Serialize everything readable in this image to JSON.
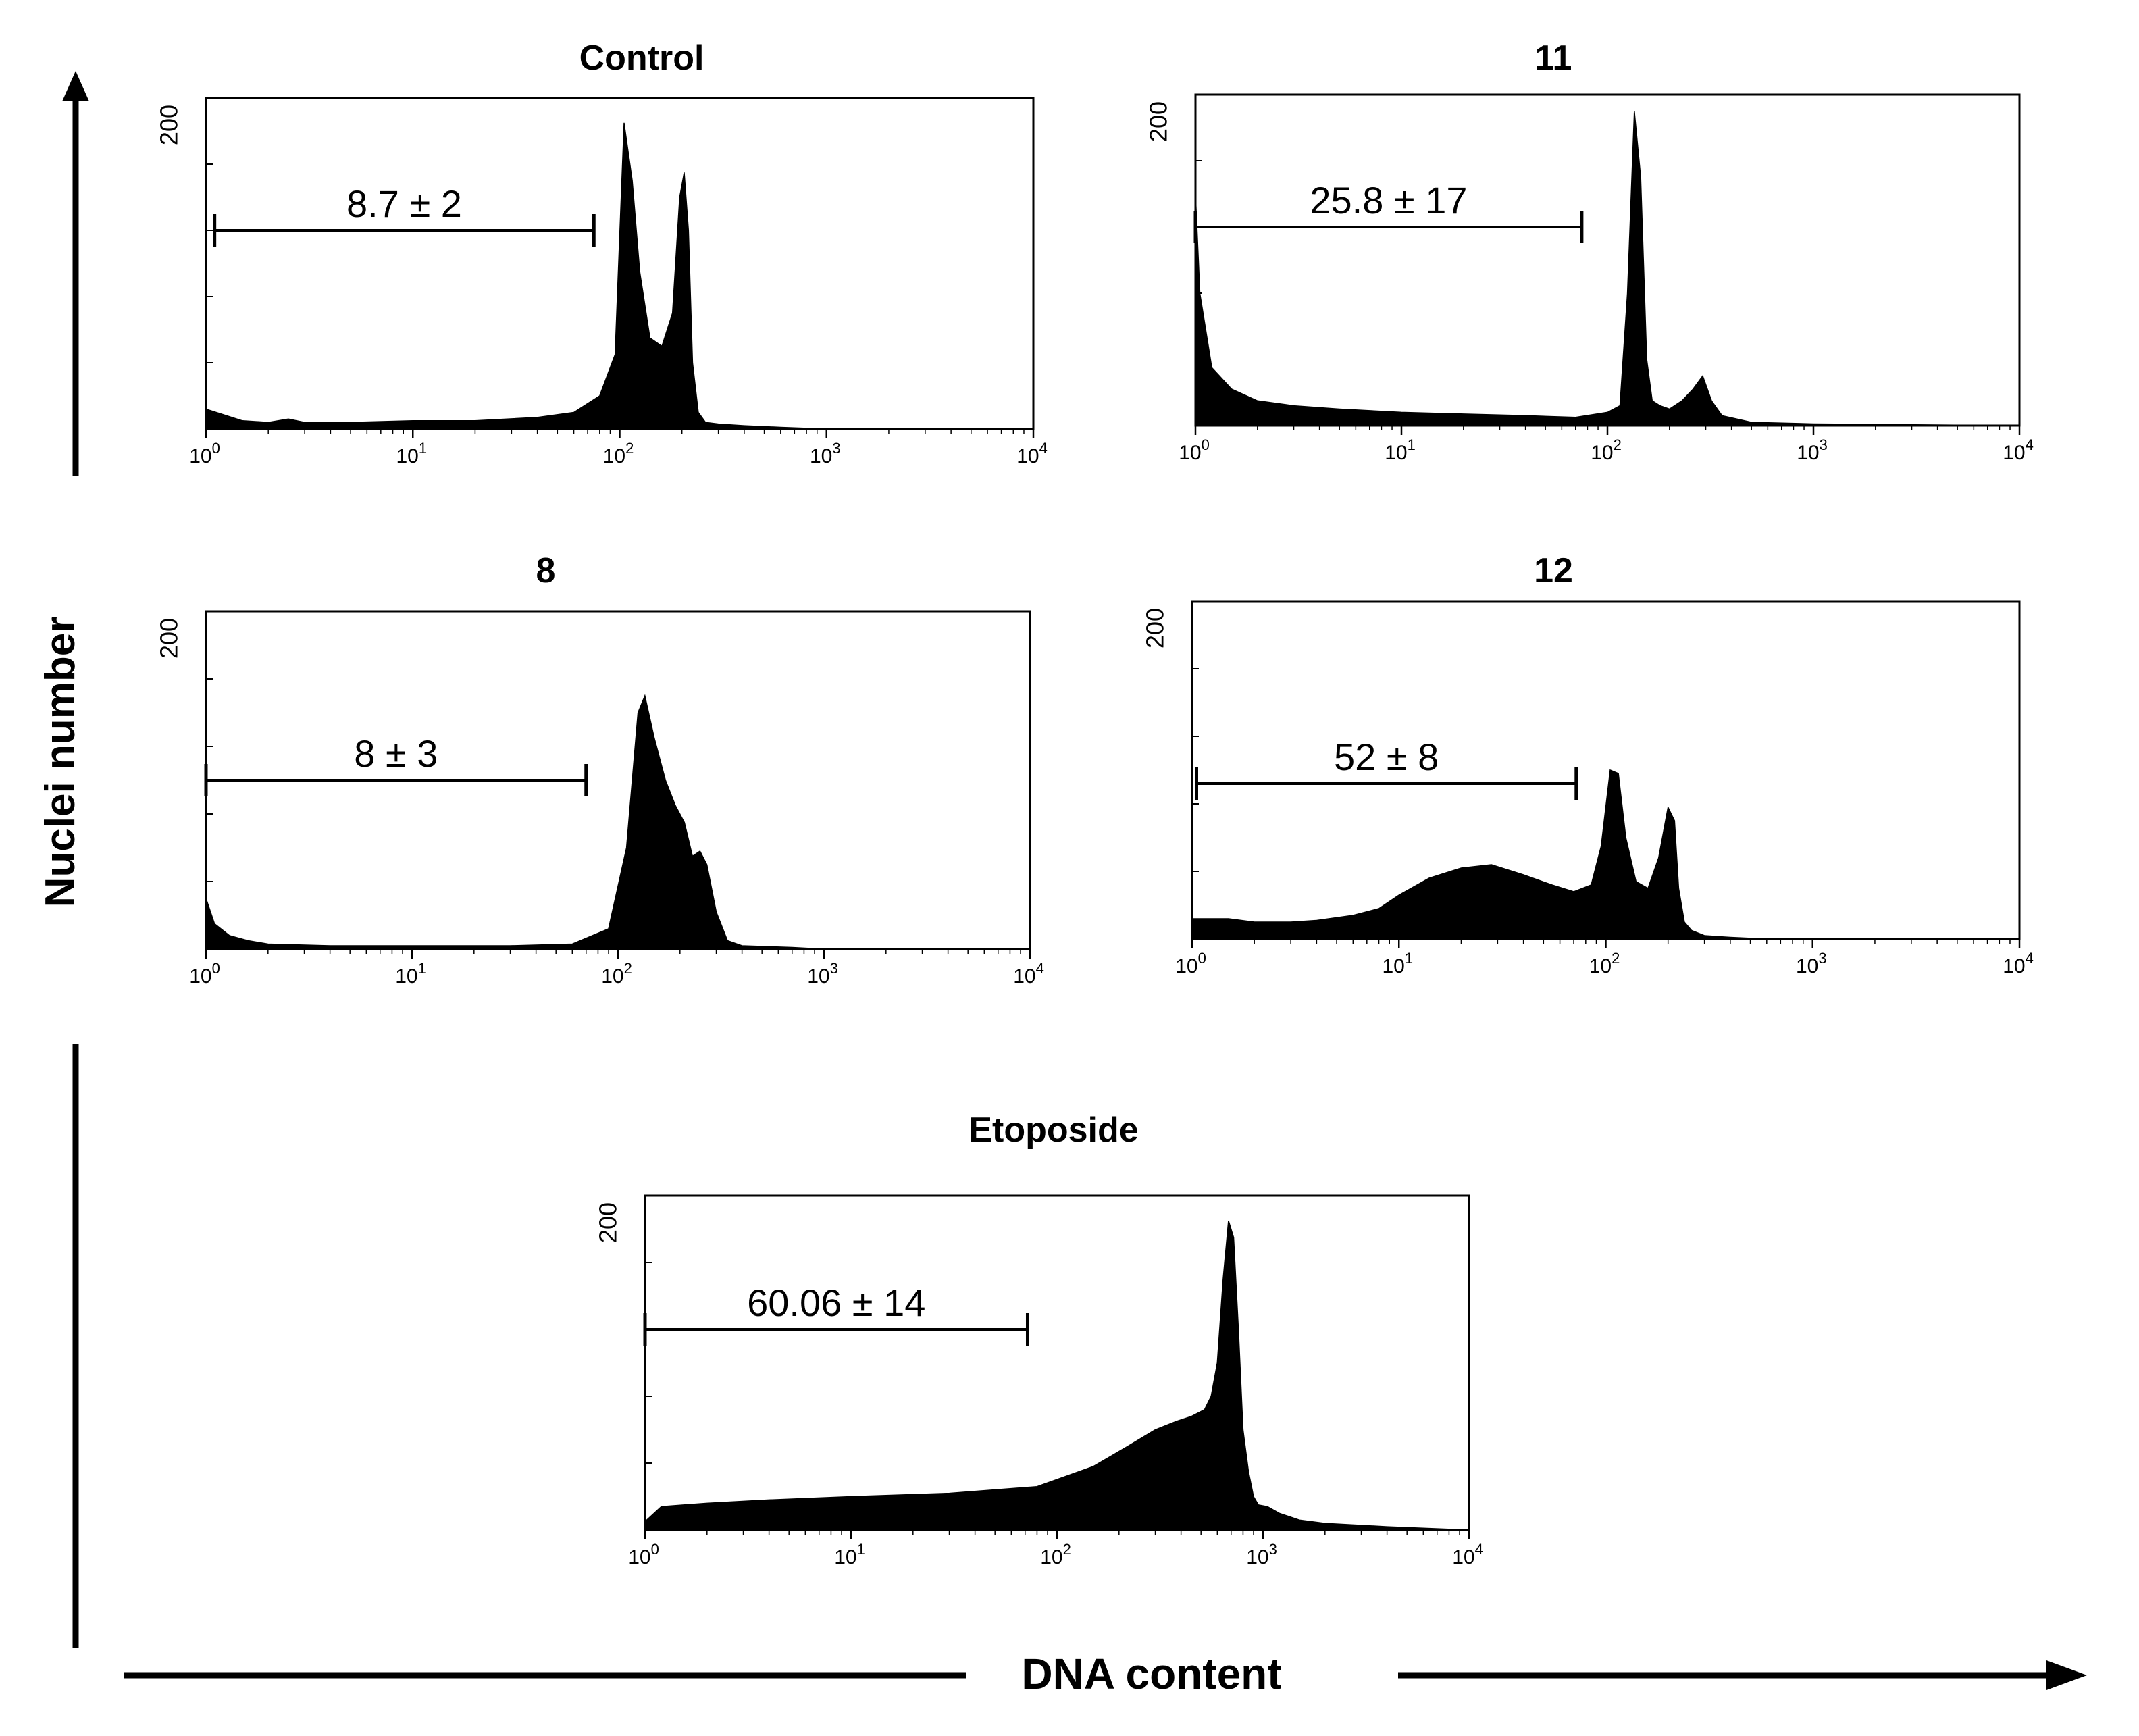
{
  "figure": {
    "y_axis_label": "Nuclei number",
    "x_axis_label": "DNA content",
    "colors": {
      "ink": "#000000",
      "background": "#ffffff"
    }
  },
  "chart_data": [
    {
      "id": "control",
      "type": "area",
      "title": "Control",
      "xscale": "log",
      "xlim": [
        1,
        10000
      ],
      "ylim": [
        0,
        200
      ],
      "ymax_label": "200",
      "x_tick_labels": [
        "10",
        "10",
        "10",
        "10",
        "10"
      ],
      "x_tick_exponents": [
        "0",
        "1",
        "2",
        "3",
        "4"
      ],
      "gate": {
        "label": "8.7 ± 2",
        "x_start": 1.1,
        "x_end": 75,
        "y": 120
      },
      "histogram": {
        "x": [
          1,
          1.5,
          2,
          2.5,
          3,
          5,
          10,
          20,
          40,
          60,
          80,
          95,
          105,
          115,
          125,
          140,
          160,
          180,
          195,
          205,
          215,
          225,
          240,
          260,
          300,
          400,
          600,
          1000,
          3000,
          10000
        ],
        "y": [
          12,
          5,
          4,
          6,
          4,
          4,
          5,
          5,
          7,
          10,
          20,
          45,
          185,
          150,
          95,
          55,
          50,
          70,
          140,
          155,
          120,
          40,
          10,
          4,
          3,
          2,
          1,
          0,
          0,
          0
        ]
      }
    },
    {
      "id": "compound-11",
      "type": "area",
      "title": "11",
      "xscale": "log",
      "xlim": [
        1,
        10000
      ],
      "ylim": [
        0,
        200
      ],
      "ymax_label": "200",
      "x_tick_labels": [
        "10",
        "10",
        "10",
        "10",
        "10"
      ],
      "x_tick_exponents": [
        "0",
        "1",
        "2",
        "3",
        "4"
      ],
      "gate": {
        "label": "25.8 ± 17",
        "x_start": 1.0,
        "x_end": 75,
        "y": 120
      },
      "histogram": {
        "x": [
          1,
          1.05,
          1.2,
          1.5,
          2,
          3,
          5,
          10,
          20,
          40,
          70,
          100,
          115,
          125,
          135,
          145,
          155,
          165,
          180,
          200,
          230,
          260,
          290,
          320,
          360,
          500,
          1000,
          10000
        ],
        "y": [
          140,
          80,
          35,
          22,
          15,
          12,
          10,
          8,
          7,
          6,
          5,
          8,
          12,
          80,
          190,
          150,
          40,
          15,
          12,
          10,
          15,
          22,
          30,
          15,
          6,
          2,
          1,
          0
        ]
      }
    },
    {
      "id": "compound-8",
      "type": "area",
      "title": "8",
      "xscale": "log",
      "xlim": [
        1,
        10000
      ],
      "ylim": [
        0,
        200
      ],
      "ymax_label": "200",
      "x_tick_labels": [
        "10",
        "10",
        "10",
        "10",
        "10"
      ],
      "x_tick_exponents": [
        "0",
        "1",
        "2",
        "3",
        "4"
      ],
      "gate": {
        "label": "8 ± 3",
        "x_start": 1.0,
        "x_end": 70,
        "y": 100
      },
      "histogram": {
        "x": [
          1,
          1.1,
          1.3,
          1.6,
          2,
          4,
          10,
          30,
          60,
          90,
          110,
          125,
          135,
          150,
          170,
          190,
          210,
          230,
          250,
          270,
          300,
          340,
          400,
          700,
          1000,
          10000
        ],
        "y": [
          30,
          15,
          8,
          5,
          3,
          2,
          2,
          2,
          3,
          12,
          60,
          140,
          150,
          125,
          100,
          85,
          75,
          55,
          58,
          50,
          22,
          5,
          2,
          1,
          0,
          0
        ]
      }
    },
    {
      "id": "compound-12",
      "type": "area",
      "title": "12",
      "xscale": "log",
      "xlim": [
        1,
        10000
      ],
      "ylim": [
        0,
        200
      ],
      "ymax_label": "200",
      "x_tick_labels": [
        "10",
        "10",
        "10",
        "10",
        "10"
      ],
      "x_tick_exponents": [
        "0",
        "1",
        "2",
        "3",
        "4"
      ],
      "gate": {
        "label": "52 ±  8",
        "x_start": 1.05,
        "x_end": 72,
        "y": 92
      },
      "histogram": {
        "x": [
          1,
          1.5,
          2,
          3,
          4,
          6,
          8,
          10,
          14,
          20,
          28,
          40,
          55,
          70,
          85,
          95,
          105,
          115,
          125,
          140,
          160,
          180,
          200,
          215,
          225,
          240,
          260,
          300,
          400,
          600,
          1000,
          10000
        ],
        "y": [
          12,
          12,
          10,
          10,
          11,
          14,
          18,
          26,
          36,
          42,
          44,
          38,
          32,
          28,
          32,
          55,
          100,
          98,
          60,
          34,
          30,
          48,
          78,
          70,
          30,
          10,
          5,
          2,
          1,
          0,
          0,
          0
        ]
      }
    },
    {
      "id": "etoposide",
      "type": "area",
      "title": "Etoposide",
      "xscale": "log",
      "xlim": [
        1,
        10000
      ],
      "ylim": [
        0,
        200
      ],
      "ymax_label": "200",
      "x_tick_labels": [
        "10",
        "10",
        "10",
        "10",
        "10"
      ],
      "x_tick_exponents": [
        "0",
        "1",
        "2",
        "3",
        "4"
      ],
      "gate": {
        "label": "60.06 ± 14",
        "x_start": 1.0,
        "x_end": 72,
        "y": 120
      },
      "histogram": {
        "x": [
          1,
          1.2,
          2,
          4,
          10,
          30,
          80,
          150,
          220,
          300,
          380,
          450,
          520,
          560,
          600,
          640,
          680,
          720,
          760,
          800,
          850,
          900,
          950,
          1050,
          1200,
          1500,
          2000,
          4000,
          10000
        ],
        "y": [
          5,
          14,
          16,
          18,
          20,
          22,
          26,
          38,
          50,
          60,
          65,
          68,
          72,
          80,
          100,
          150,
          185,
          175,
          120,
          60,
          35,
          20,
          15,
          14,
          10,
          6,
          4,
          2,
          0
        ]
      }
    }
  ]
}
